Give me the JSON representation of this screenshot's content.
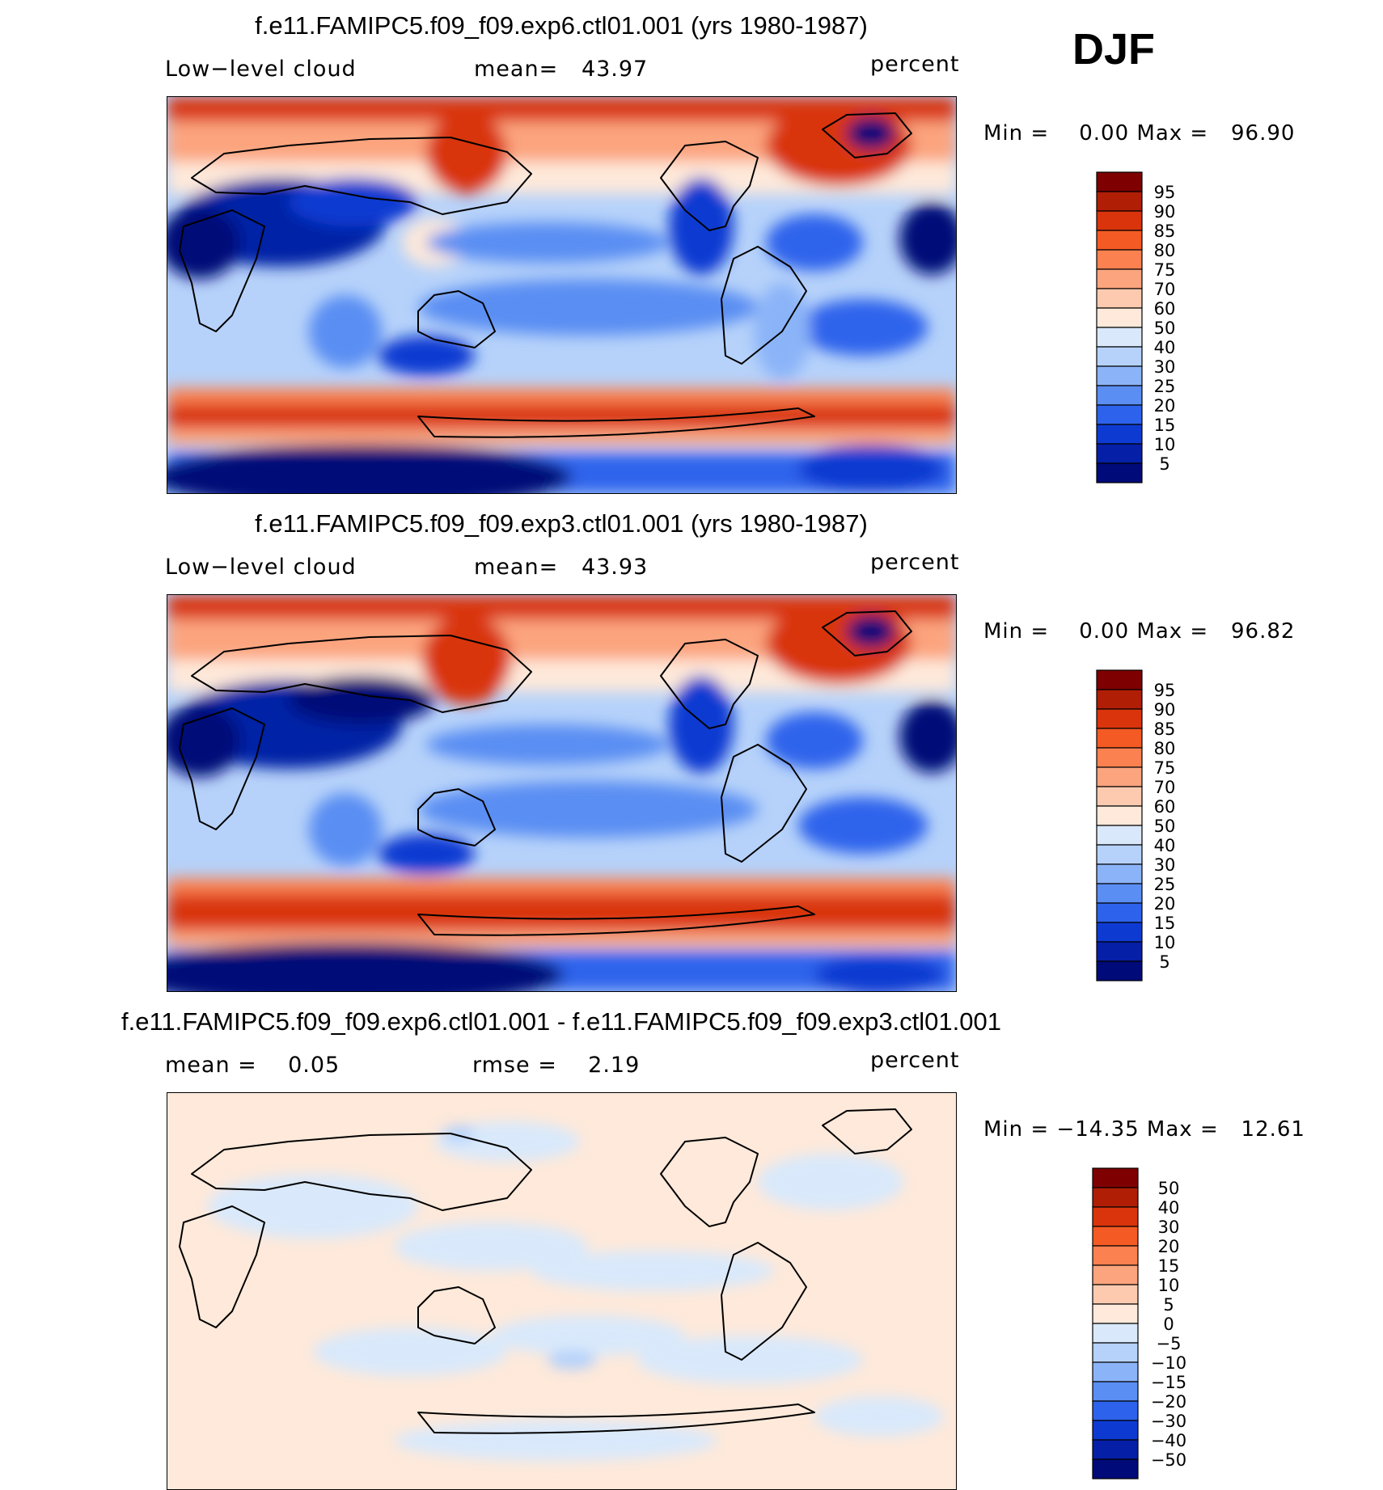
{
  "season": "DJF",
  "panels": [
    {
      "title": "f.e11.FAMIPC5.f09_f09.exp6.ctl01.001 (yrs 1980-1987)",
      "left_label": "Low−level cloud",
      "center_label": "mean=   43.97",
      "right_label": "percent",
      "minmax": "Min =    0.00 Max =   96.90"
    },
    {
      "title": "f.e11.FAMIPC5.f09_f09.exp3.ctl01.001 (yrs 1980-1987)",
      "left_label": "Low−level cloud",
      "center_label": "mean=   43.93",
      "right_label": "percent",
      "minmax": "Min =    0.00 Max =   96.82"
    },
    {
      "title": "f.e11.FAMIPC5.f09_f09.exp6.ctl01.001 - f.e11.FAMIPC5.f09_f09.exp3.ctl01.001",
      "left_label": "mean =    0.05",
      "center_label": "rmse =    2.19",
      "right_label": "percent",
      "minmax": "Min = −14.35 Max =   12.61"
    }
  ],
  "colorbars": {
    "absolute": {
      "labels": [
        "95",
        "90",
        "85",
        "80",
        "75",
        "70",
        "60",
        "50",
        "40",
        "30",
        "25",
        "20",
        "15",
        "10",
        "5"
      ],
      "colors": [
        "#7f0000",
        "#b01e05",
        "#d9340c",
        "#f45a24",
        "#fb8150",
        "#fca47e",
        "#fdcab0",
        "#fee9da",
        "#d9e9fb",
        "#b6d2fa",
        "#8bb4f8",
        "#5a8ef3",
        "#2d63ec",
        "#0d3bd2",
        "#0520a6",
        "#000a78"
      ]
    },
    "difference": {
      "labels": [
        "50",
        "40",
        "30",
        "20",
        "15",
        "10",
        "5",
        "0",
        "−5",
        "−10",
        "−15",
        "−20",
        "−30",
        "−40",
        "−50"
      ],
      "colors": [
        "#7f0000",
        "#b01e05",
        "#d9340c",
        "#f45a24",
        "#fb8150",
        "#fca47e",
        "#fdcab0",
        "#fee9da",
        "#d9e9fb",
        "#b6d2fa",
        "#8bb4f8",
        "#5a8ef3",
        "#2d63ec",
        "#0d3bd2",
        "#0520a6",
        "#000a78"
      ]
    }
  }
}
